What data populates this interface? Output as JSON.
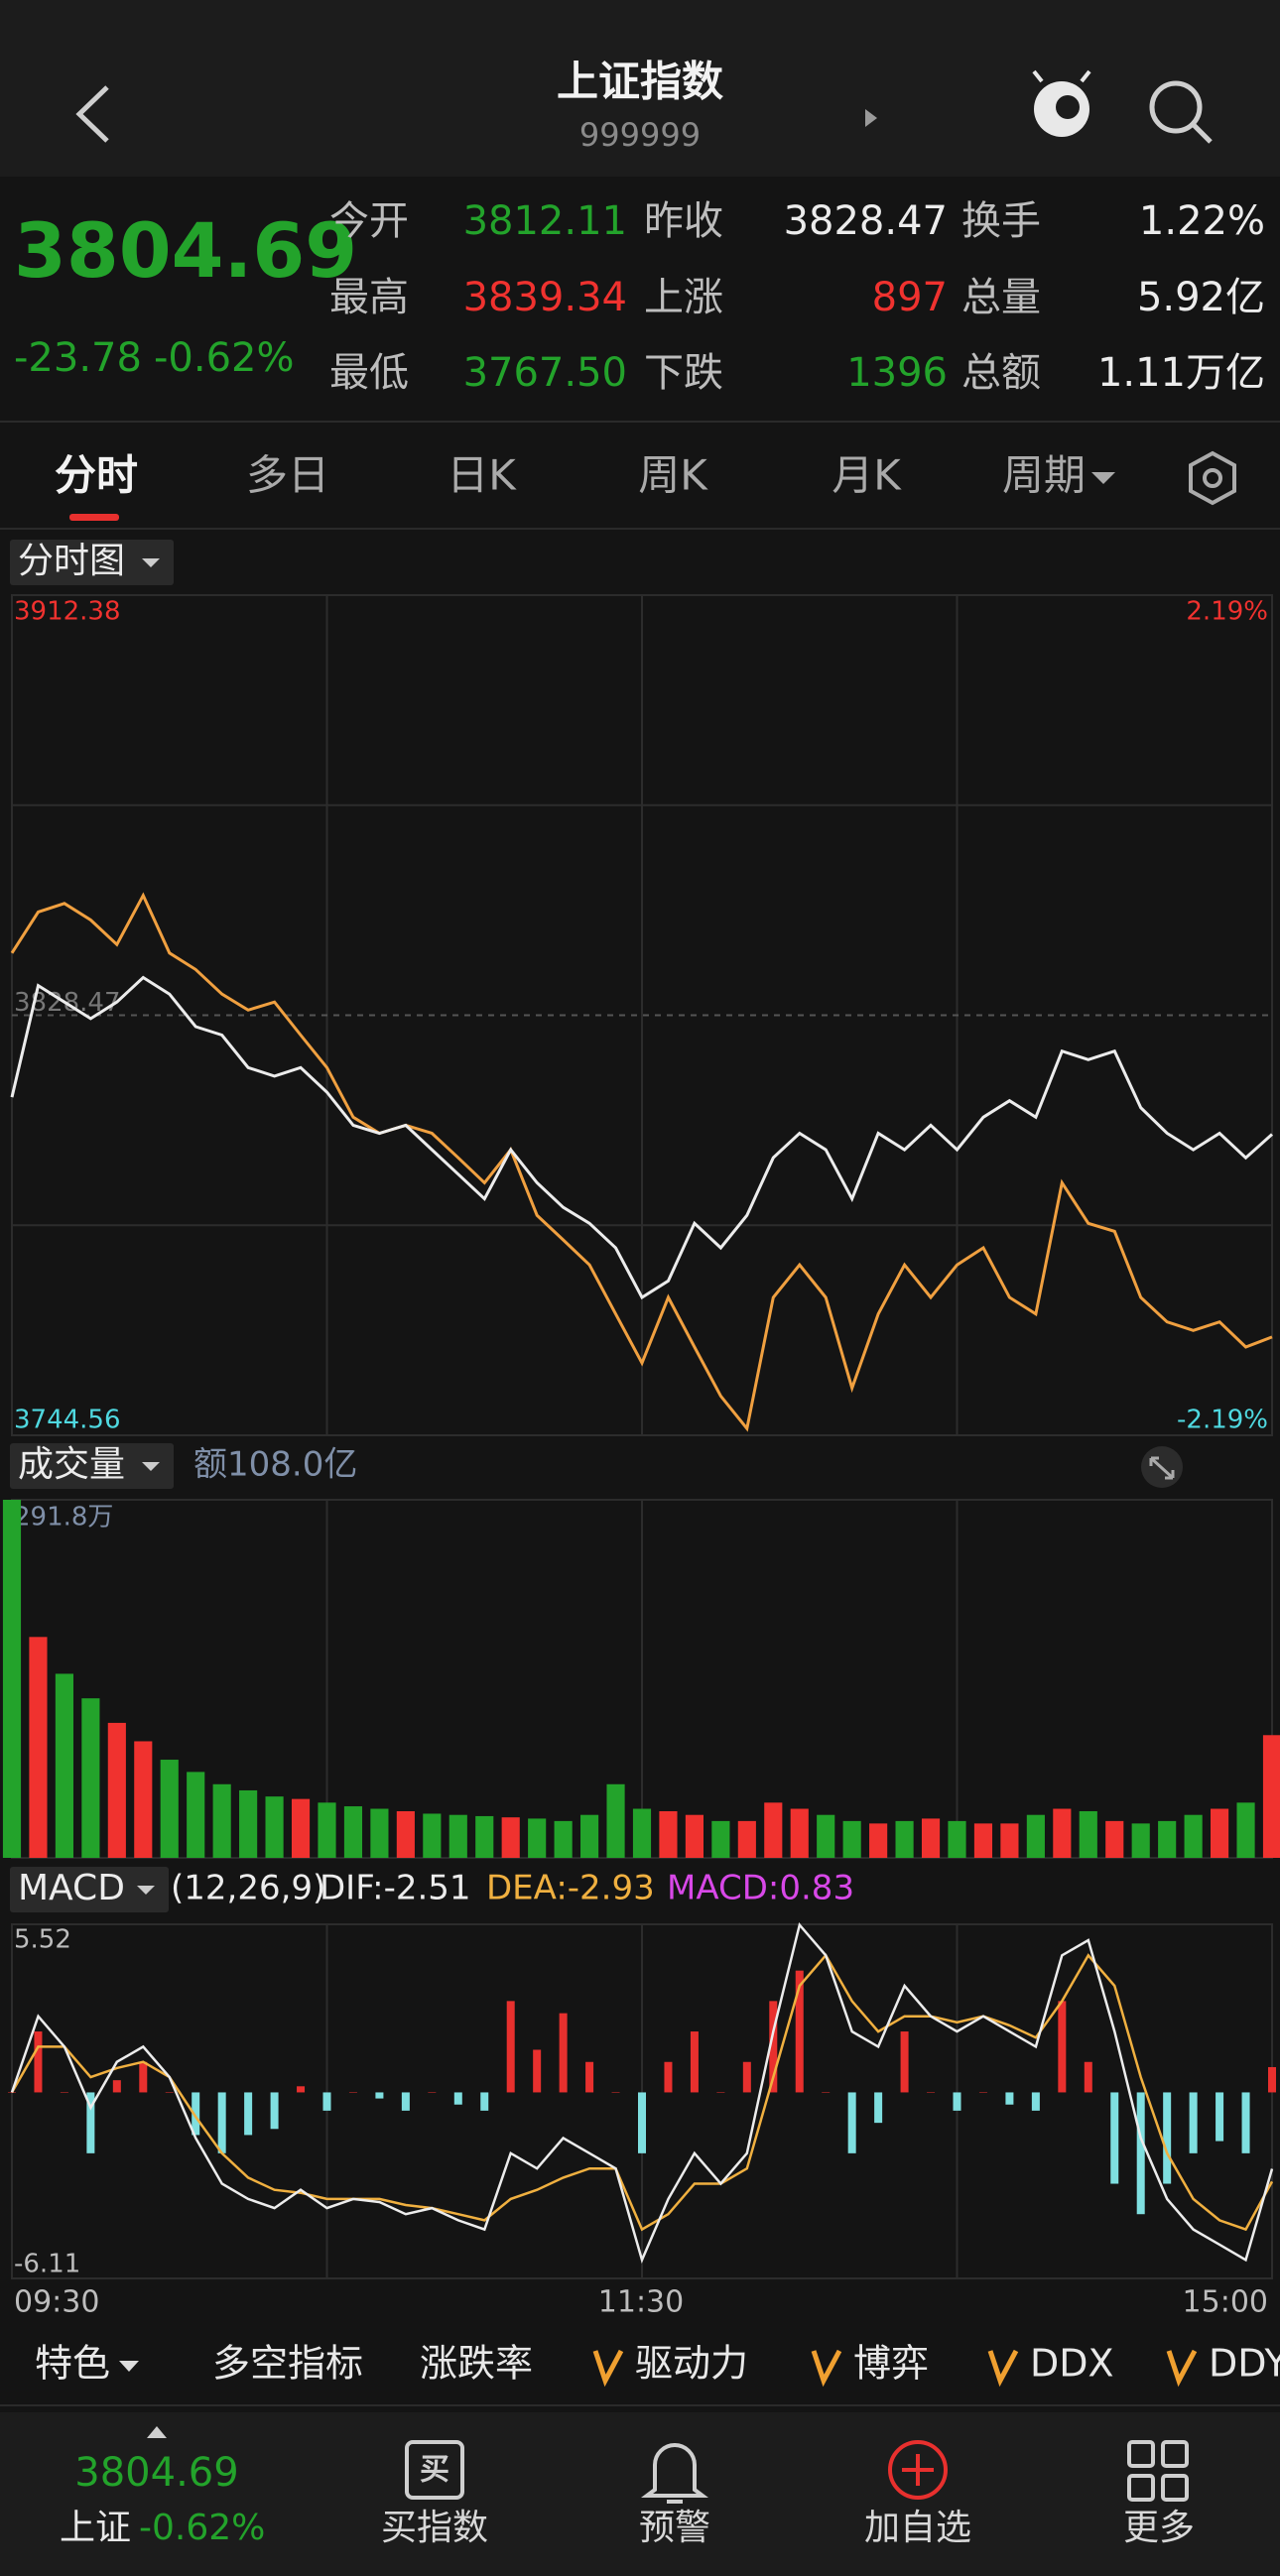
{
  "header": {
    "title": "上证指数",
    "code": "999999"
  },
  "quote": {
    "price": "3804.69",
    "change": "-23.78",
    "change_pct": "-0.62%",
    "color": "#23a32b",
    "stats": [
      [
        {
          "label": "今开",
          "value": "3812.11",
          "color": "#23a32b"
        },
        {
          "label": "昨收",
          "value": "3828.47",
          "color": "#ececec"
        },
        {
          "label": "换手",
          "value": "1.22%",
          "color": "#ececec"
        }
      ],
      [
        {
          "label": "最高",
          "value": "3839.34",
          "color": "#f0322f"
        },
        {
          "label": "上涨",
          "value": "897",
          "color": "#f0322f"
        },
        {
          "label": "总量",
          "value": "5.92亿",
          "color": "#ececec"
        }
      ],
      [
        {
          "label": "最低",
          "value": "3767.50",
          "color": "#23a32b"
        },
        {
          "label": "下跌",
          "value": "1396",
          "color": "#23a32b"
        },
        {
          "label": "总额",
          "value": "1.11万亿",
          "color": "#ececec"
        }
      ]
    ]
  },
  "tabs": [
    "分时",
    "多日",
    "日K",
    "周K",
    "月K",
    "周期"
  ],
  "intraday": {
    "selector": "分时图",
    "ylim": [
      3744.56,
      3912.38
    ],
    "yticks": [
      3744.56,
      3912.38
    ],
    "y2lim": [
      -2.19,
      2.19
    ],
    "y2ticks": [
      {
        "value": -2.19,
        "label": "-2.19%"
      },
      {
        "value": 2.19,
        "label": "2.19%"
      }
    ],
    "prev_close": 3828.47,
    "price": [
      3812.1,
      3834.4,
      3831.1,
      3827.8,
      3831.1,
      3836.0,
      3832.7,
      3826.2,
      3824.5,
      3818.0,
      3816.3,
      3818.0,
      3813.1,
      3806.5,
      3804.9,
      3806.5,
      3801.6,
      3796.7,
      3791.8,
      3801.6,
      3795.0,
      3790.1,
      3786.9,
      3782.0,
      3772.1,
      3775.4,
      3786.9,
      3782.0,
      3788.5,
      3800.0,
      3804.9,
      3801.6,
      3791.8,
      3804.9,
      3801.6,
      3806.5,
      3801.6,
      3808.1,
      3811.4,
      3808.1,
      3821.3,
      3819.6,
      3821.3,
      3810.0,
      3804.9,
      3801.6,
      3804.9,
      3800.0,
      3804.7
    ],
    "avg": [
      3840.9,
      3849.1,
      3850.8,
      3847.5,
      3842.6,
      3852.4,
      3840.9,
      3837.6,
      3832.7,
      3829.5,
      3831.1,
      3824.5,
      3818.0,
      3808.1,
      3804.9,
      3806.5,
      3804.9,
      3800.0,
      3795.0,
      3801.6,
      3788.5,
      3783.6,
      3778.6,
      3768.8,
      3759.0,
      3772.1,
      3762.2,
      3752.4,
      3745.9,
      3772.1,
      3778.6,
      3772.1,
      3754.0,
      3768.8,
      3778.6,
      3772.1,
      3778.6,
      3782.0,
      3772.1,
      3768.8,
      3795.0,
      3786.9,
      3785.3,
      3772.1,
      3767.2,
      3765.5,
      3767.2,
      3762.2,
      3764.2
    ],
    "price_color": "#ececec",
    "avg_color": "#f0a040"
  },
  "volume": {
    "label": "成交量",
    "amount": "额108.0亿",
    "ylim": [
      0,
      291.8
    ],
    "yticks": [
      {
        "value": 291.8,
        "label": "291.8万"
      }
    ],
    "values": [
      291.8,
      180,
      150,
      130,
      110,
      95,
      80,
      70,
      60,
      55,
      50,
      48,
      45,
      42,
      40,
      38,
      36,
      35,
      34,
      33,
      32,
      30,
      35,
      60,
      40,
      38,
      35,
      30,
      30,
      45,
      40,
      35,
      30,
      28,
      30,
      32,
      30,
      28,
      28,
      35,
      40,
      38,
      30,
      28,
      30,
      35,
      40,
      45,
      100
    ],
    "up_color": "#f0322f",
    "down_color": "#23a32b"
  },
  "macd": {
    "label": "MACD",
    "params": "(12,26,9)",
    "dif_label": "DIF:-2.51",
    "dea_label": "DEA:-2.93",
    "macd_label": "MACD:0.83",
    "ylim": [
      -6.11,
      5.52
    ],
    "yticks": [
      -6.11,
      5.52
    ],
    "dif": [
      0,
      2.5,
      1.5,
      -0.5,
      1.0,
      1.5,
      0.5,
      -1.5,
      -3.0,
      -3.5,
      -3.8,
      -3.2,
      -3.8,
      -3.5,
      -3.6,
      -4.0,
      -3.8,
      -4.2,
      -4.5,
      -2.0,
      -2.5,
      -1.5,
      -2.0,
      -2.5,
      -5.5,
      -3.5,
      -2.0,
      -3.0,
      -2.0,
      2.0,
      5.5,
      4.5,
      2.0,
      1.5,
      3.5,
      2.5,
      2.0,
      2.5,
      2.0,
      1.5,
      4.5,
      5.0,
      2.0,
      -1.5,
      -3.5,
      -4.5,
      -5.0,
      -5.5,
      -2.51
    ],
    "dea": [
      0,
      1.5,
      1.5,
      0.5,
      0.8,
      1.0,
      0.5,
      -0.8,
      -2.0,
      -2.8,
      -3.2,
      -3.3,
      -3.5,
      -3.5,
      -3.5,
      -3.7,
      -3.8,
      -4.0,
      -4.2,
      -3.5,
      -3.2,
      -2.8,
      -2.5,
      -2.5,
      -4.5,
      -4.0,
      -3.0,
      -3.0,
      -2.5,
      0.5,
      3.5,
      4.5,
      3.0,
      2.0,
      2.5,
      2.5,
      2.3,
      2.5,
      2.2,
      1.8,
      3.0,
      4.5,
      3.5,
      0.5,
      -2.0,
      -3.5,
      -4.2,
      -4.5,
      -2.93
    ],
    "hist": [
      0,
      2.0,
      0,
      -2.0,
      0.4,
      1.0,
      0,
      -1.4,
      -2.0,
      -1.4,
      -1.2,
      0.2,
      -0.6,
      0,
      -0.2,
      -0.6,
      0,
      -0.4,
      -0.6,
      3.0,
      1.4,
      2.6,
      1.0,
      0,
      -2.0,
      1.0,
      2.0,
      0,
      1.0,
      3.0,
      4.0,
      0,
      -2.0,
      -1.0,
      2.0,
      0,
      -0.6,
      0,
      -0.4,
      -0.6,
      3.0,
      1.0,
      -3.0,
      -4.0,
      -3.0,
      -2.0,
      -1.6,
      -2.0,
      0.83
    ],
    "dif_color": "#ececec",
    "dea_color": "#f0b040",
    "macd_color": "#d848e8",
    "up_color": "#e8302e",
    "down_color": "#7fdfe0"
  },
  "time_labels": [
    "09:30",
    "11:30",
    "15:00"
  ],
  "indicators": [
    "特色",
    "多空指标",
    "涨跌率",
    "驱动力",
    "博弈",
    "DDX",
    "DDY"
  ],
  "bottom_nav": {
    "index_price": "3804.69",
    "index_name": "上证",
    "index_change": "-0.62%",
    "items": [
      "买指数",
      "预警",
      "加自选",
      "更多"
    ]
  }
}
